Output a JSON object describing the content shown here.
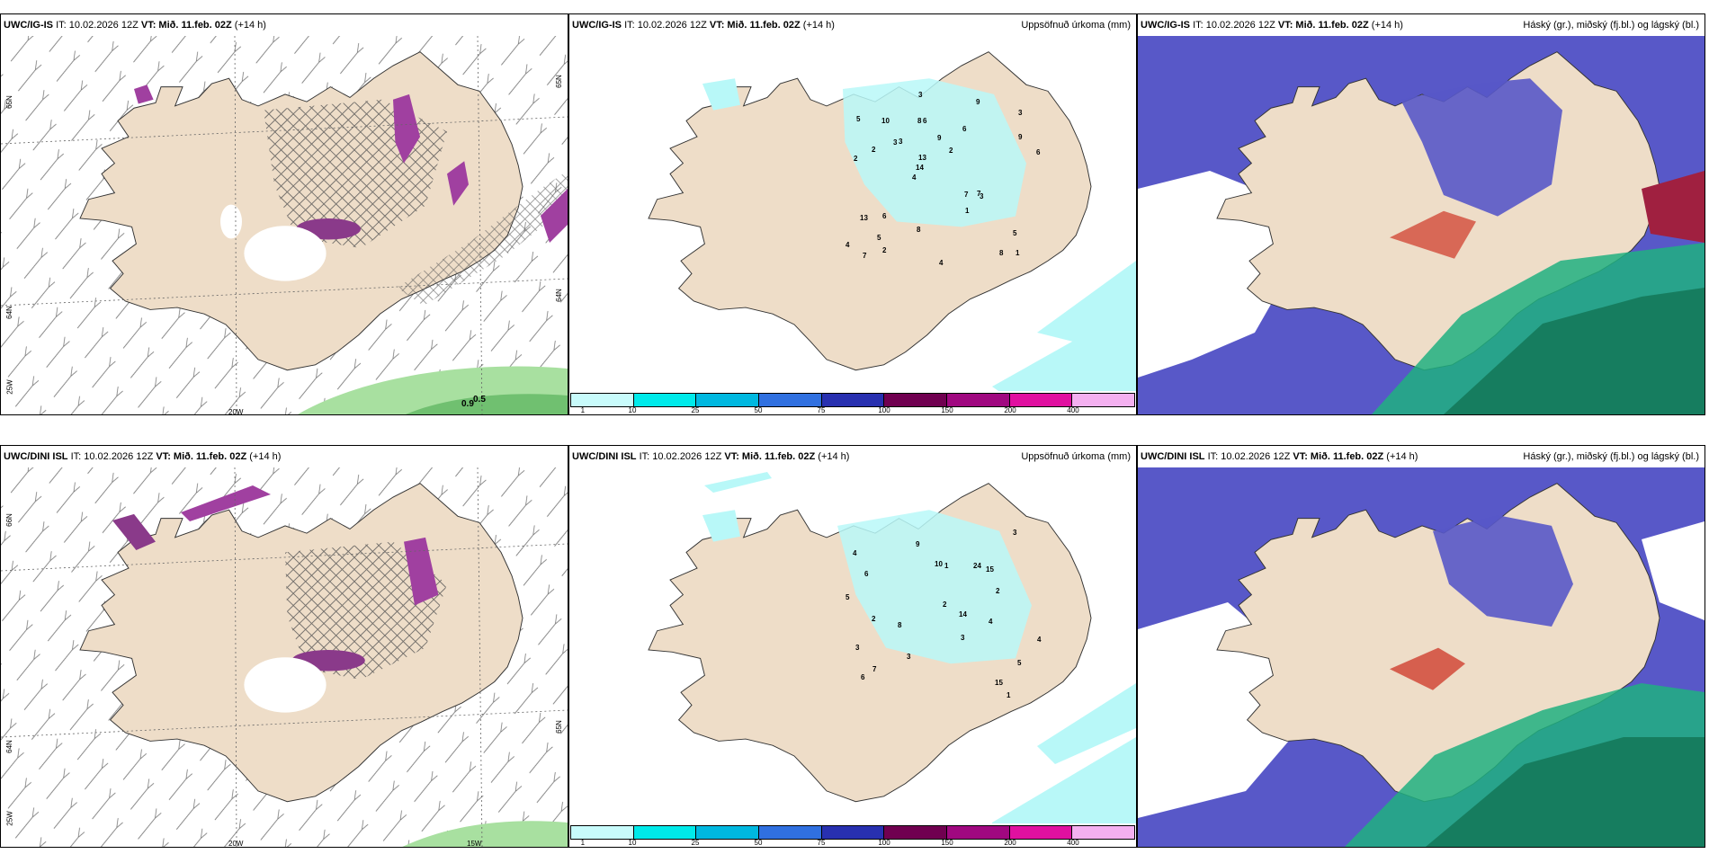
{
  "panels": {
    "p1": {
      "model": "UWC/IG-IS",
      "it": "IT: 10.02.2026 12Z",
      "vt": "VT: Mið. 11.feb. 02Z",
      "lead": "(+14 h)",
      "lat_a": "65N",
      "lat_b": "64N",
      "lat_c": "65N",
      "lat_d": "64N",
      "lon_a": "20W",
      "lon_b": "25W",
      "val_a": "0.5",
      "val_b": "0.9"
    },
    "p2": {
      "model": "UWC/IG-IS",
      "it": "IT: 10.02.2026 12Z",
      "vt": "VT: Mið. 11.feb. 02Z",
      "lead": "(+14 h)",
      "title": "Uppsöfnuð úrkoma (mm)"
    },
    "p3": {
      "model": "UWC/IG-IS",
      "it": "IT: 10.02.2026 12Z",
      "vt": "VT: Mið. 11.feb. 02Z",
      "lead": "(+14 h)",
      "title": "Háský (gr.), miðský (fj.bl.) og lágský (bl.)"
    },
    "p4": {
      "model": "UWC/DINI ISL",
      "it": "IT: 10.02.2026 12Z",
      "vt": "VT: Mið. 11.feb. 02Z",
      "lead": "(+14 h)",
      "lat_a": "66N",
      "lat_b": "64N",
      "lat_c": "65N",
      "lon_a": "20W",
      "lon_b": "15W",
      "lon_c": "25W"
    },
    "p5": {
      "model": "UWC/DINI ISL",
      "it": "IT: 10.02.2026 12Z",
      "vt": "VT: Mið. 11.feb. 02Z",
      "lead": "(+14 h)",
      "title": "Uppsöfnuð úrkoma (mm)"
    },
    "p6": {
      "model": "UWC/DINI ISL",
      "it": "IT: 10.02.2026 12Z",
      "vt": "VT: Mið. 11.feb. 02Z",
      "lead": "(+14 h)",
      "title": "Háský (gr.), miðský (fj.bl.) og lágský (bl.)"
    }
  },
  "colorbar": {
    "ticks": [
      "1",
      "10",
      "25",
      "50",
      "75",
      "100",
      "150",
      "200",
      "400"
    ],
    "colors": [
      "#c8fbfb",
      "#00eaea",
      "#00b8e0",
      "#3070e0",
      "#2830b0",
      "#700050",
      "#a00880",
      "#e010a0",
      "#f4b0f0"
    ]
  },
  "precip_top": [
    "1",
    "2",
    "3",
    "4",
    "6",
    "7",
    "8",
    "9",
    "13",
    "3",
    "4",
    "5",
    "6",
    "2",
    "3",
    "5",
    "3",
    "6",
    "7",
    "9",
    "14",
    "8",
    "13",
    "10",
    "9",
    "6",
    "8",
    "5",
    "7",
    "4",
    "3",
    "2",
    "1",
    "2"
  ],
  "precip_bottom": [
    "1",
    "2",
    "3",
    "4",
    "5",
    "6",
    "7",
    "8",
    "15",
    "10",
    "24",
    "15",
    "3",
    "9",
    "14",
    "3",
    "4",
    "2",
    "5",
    "6",
    "3",
    "1",
    "2",
    "4"
  ],
  "palette": {
    "land": "#eeddc8",
    "precip": "#b8f8f8",
    "snow_purple": "#a040a0",
    "high_cloud": "#5858c8",
    "mid_cloud": "#20b080",
    "low_cloud": "#d04030",
    "green": "#80d880"
  }
}
